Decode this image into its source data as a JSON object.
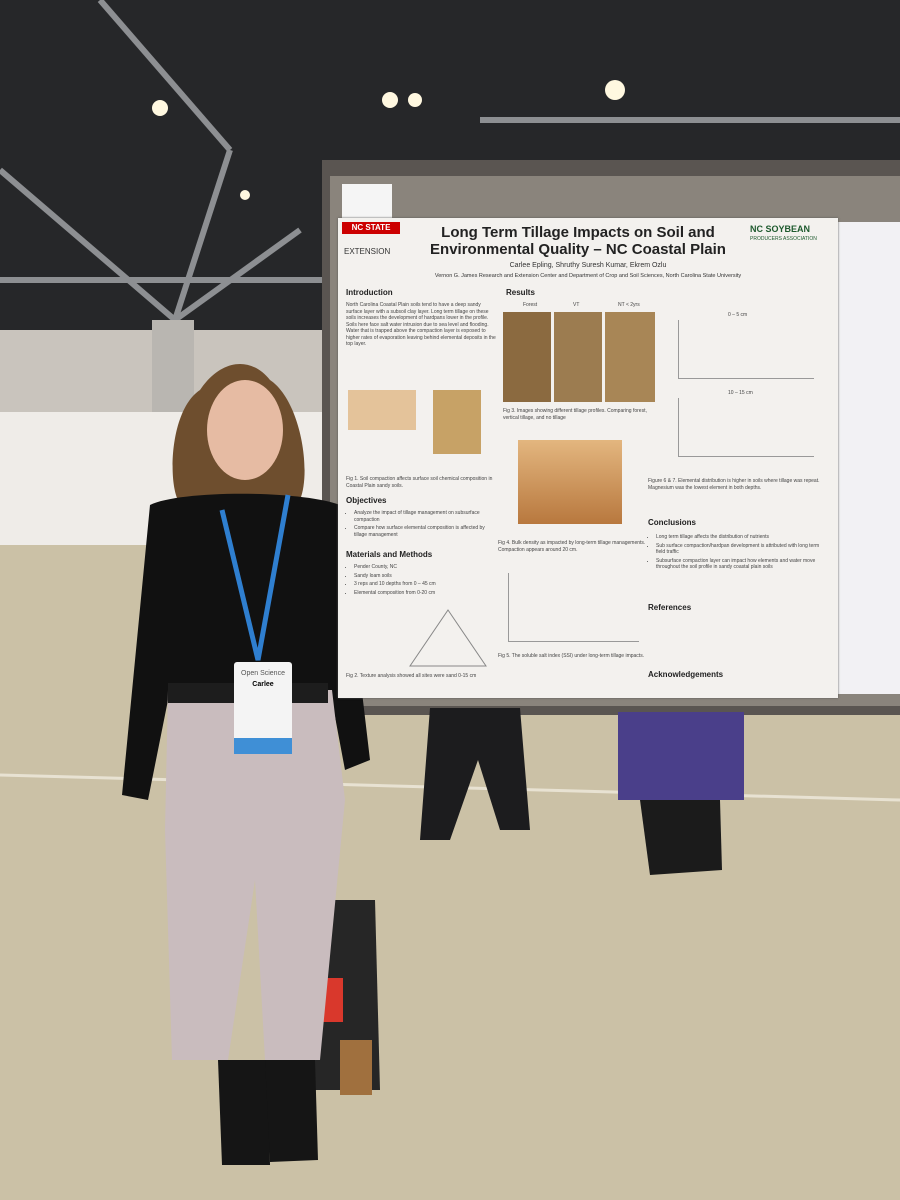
{
  "poster": {
    "logo_left": [
      "NC STATE",
      "EXTENSION"
    ],
    "title": "Long Term Tillage Impacts on Soil and Environmental Quality – NC Coastal Plain",
    "logo_right": [
      "NC SOYBEAN",
      "PRODUCERS ASSOCIATION"
    ],
    "authors": "Carlee Epling, Shruthy Suresh Kumar, Ekrem Ozlu",
    "affiliation": "Vernon G. James Research and Extension Center and Department of Crop and Soil Sciences, North Carolina State University",
    "introduction": {
      "heading": "Introduction",
      "text": "North Carolina Coastal Plain soils tend to have a deep sandy surface layer with a subsoil clay layer. Long term tillage on these soils increases the development of hardpans lower in the profile. Soils here face salt water intrusion due to sea level and flooding. Water that is trapped above the compaction layer is exposed to higher rates of evaporation leaving behind elemental deposits in the top layer.",
      "caption": "Fig 1. Soil compaction affects surface soil chemical composition in Coastal Plain sandy soils."
    },
    "objectives": {
      "heading": "Objectives",
      "items": [
        "Analyze the impact of tillage management on subsurface compaction",
        "Compare how surface elemental composition is affected by tillage management"
      ]
    },
    "methods": {
      "heading": "Materials and Methods",
      "items": [
        "Pender County, NC",
        "Sandy loam soils",
        "3 reps and 10 depths from 0 – 45 cm",
        "Elemental composition from 0-20 cm"
      ],
      "caption": "Fig 2. Texture analysis showed all sites were sand 0-15 cm"
    },
    "results": {
      "heading": "Results",
      "photo_labels": [
        "Forest",
        "VT",
        "NT < 2yrs"
      ],
      "fig3": "Fig 3. Images showing different tillage profiles. Comparing forest, vertical tillage, and no tillage",
      "fig4": "Fig 4. Bulk density as impacted by long-term tillage managements. Compaction appears around 20 cm.",
      "fig5": "Fig 5. The soluble salt index (SSI) under long-term tillage impacts.",
      "depth_chart_title": "0 – 5 cm",
      "depth_chart_title_2": "10 – 15 cm",
      "fig67": "Figure 6 & 7. Elemental distribution is higher in soils where tillage was repeat. Magnesium was the lowest element in both depths."
    },
    "conclusions": {
      "heading": "Conclusions",
      "items": [
        "Long term tillage affects the distribution of nutrients",
        "Sub surface compaction/hardpan development is attributed with long term field traffic",
        "Subsurface compaction layer can impact how elements and water move throughout the soil profile in sandy coastal plain soils"
      ]
    },
    "references": {
      "heading": "References"
    },
    "acknowledgements": {
      "heading": "Acknowledgements"
    }
  },
  "badge": {
    "event": "Open Science",
    "name": "Carlee"
  }
}
